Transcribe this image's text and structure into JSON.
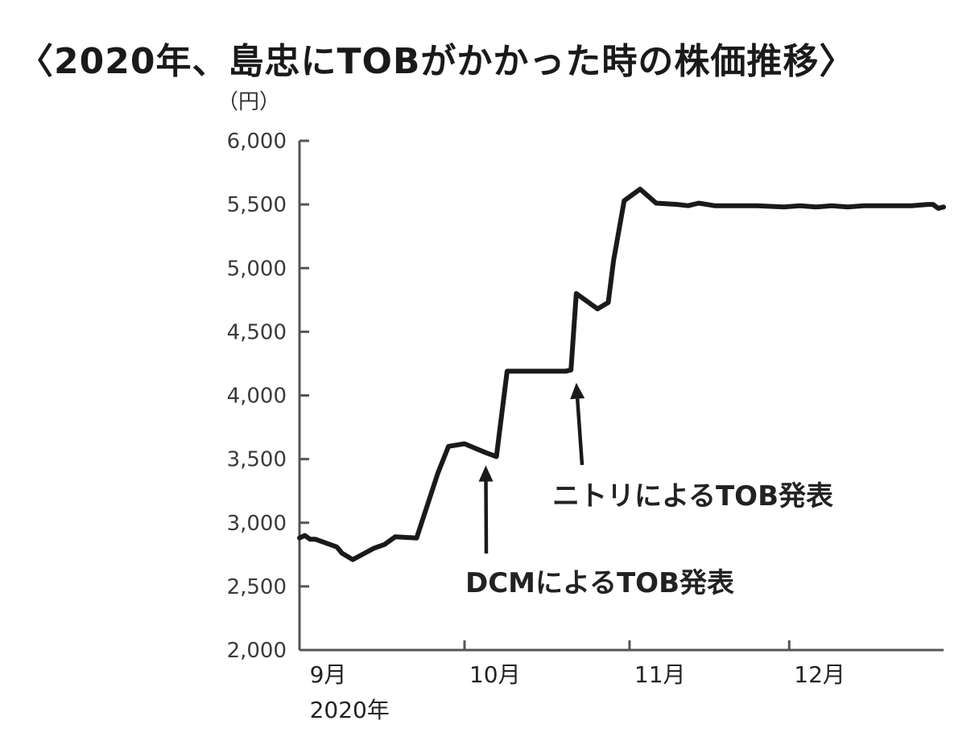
{
  "title": "〈2020年、島忠にTOBがかかった時の株価推移〉",
  "chart_data": {
    "type": "line",
    "ylabel": "（円）",
    "ylim": [
      2000,
      6000
    ],
    "yticks": [
      2000,
      2500,
      3000,
      3500,
      4000,
      4500,
      5000,
      5500,
      6000
    ],
    "ytick_labels": [
      "2,000",
      "2,500",
      "3,000",
      "3,500",
      "4,000",
      "4,500",
      "5,000",
      "5,500",
      "6,000"
    ],
    "xlim": [
      "2020-08-31",
      "2020-12-30"
    ],
    "xticks": [
      {
        "date": "2020-09-01",
        "label": "9月"
      },
      {
        "date": "2020-10-01",
        "label": "10月"
      },
      {
        "date": "2020-11-01",
        "label": "11月"
      },
      {
        "date": "2020-12-01",
        "label": "12月"
      }
    ],
    "xaxis_sublabel": "2020年",
    "grid": false,
    "series": [
      {
        "x": [
          "2020-08-31",
          "2020-09-01",
          "2020-09-02",
          "2020-09-03",
          "2020-09-07",
          "2020-09-08",
          "2020-09-10",
          "2020-09-14",
          "2020-09-16",
          "2020-09-18",
          "2020-09-22",
          "2020-09-26",
          "2020-09-28",
          "2020-10-01",
          "2020-10-05",
          "2020-10-07",
          "2020-10-09",
          "2020-10-12",
          "2020-10-15",
          "2020-10-18",
          "2020-10-20",
          "2020-10-21",
          "2020-10-22",
          "2020-10-26",
          "2020-10-28",
          "2020-10-29",
          "2020-10-31",
          "2020-11-03",
          "2020-11-06",
          "2020-11-10",
          "2020-11-12",
          "2020-11-14",
          "2020-11-17",
          "2020-11-20",
          "2020-11-25",
          "2020-11-30",
          "2020-12-03",
          "2020-12-06",
          "2020-12-09",
          "2020-12-12",
          "2020-12-15",
          "2020-12-18",
          "2020-12-21",
          "2020-12-24",
          "2020-12-27",
          "2020-12-28",
          "2020-12-29",
          "2020-12-30"
        ],
        "y": [
          2880,
          2900,
          2870,
          2870,
          2810,
          2760,
          2710,
          2800,
          2830,
          2890,
          2880,
          3390,
          3600,
          3620,
          3550,
          3520,
          4190,
          4190,
          4190,
          4190,
          4190,
          4200,
          4800,
          4680,
          4730,
          5060,
          5530,
          5620,
          5510,
          5500,
          5490,
          5510,
          5490,
          5490,
          5490,
          5480,
          5490,
          5480,
          5490,
          5480,
          5490,
          5490,
          5490,
          5490,
          5500,
          5500,
          5470,
          5480
        ]
      }
    ],
    "annotations": [
      {
        "text": "DCMによるTOB発表",
        "arrow_date": "2020-10-05",
        "arrow_value": 3450
      },
      {
        "text": "ニトリによるTOB発表",
        "arrow_date": "2020-10-22",
        "arrow_value": 4100
      }
    ],
    "line_color": "#1a1a1a",
    "axis_color": "#555555"
  }
}
